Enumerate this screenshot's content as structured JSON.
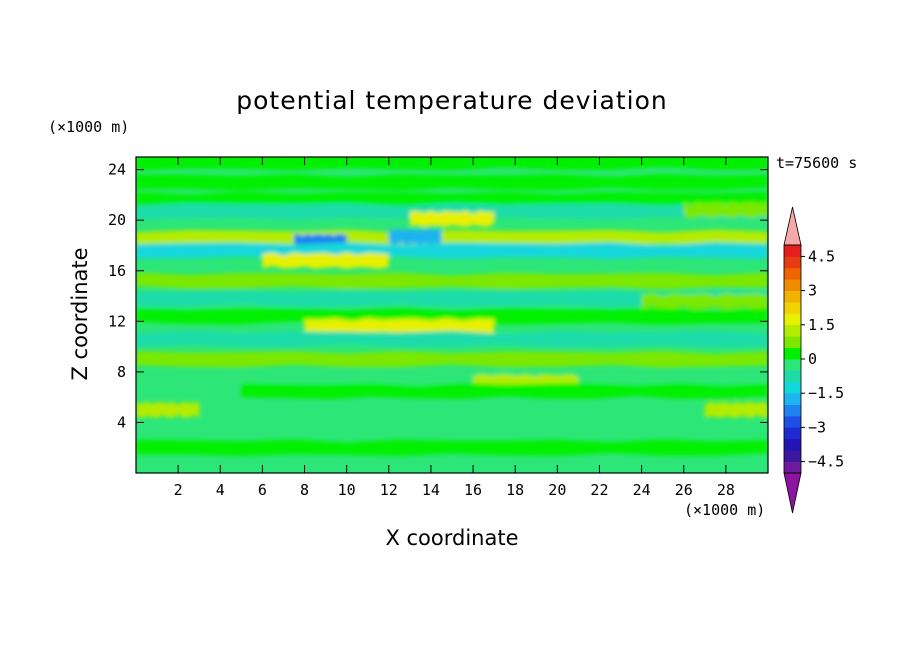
{
  "chart_data": {
    "type": "heatmap",
    "title": "potential temperature deviation",
    "xlabel": "X coordinate",
    "ylabel": "Z coordinate",
    "x_unit": "(×1000 m)",
    "y_unit": "(×1000 m)",
    "time_label": "t=75600 s",
    "xlim": [
      0,
      30
    ],
    "ylim": [
      0,
      25
    ],
    "x_ticks": [
      2,
      4,
      6,
      8,
      10,
      12,
      14,
      16,
      18,
      20,
      22,
      24,
      26,
      28
    ],
    "y_ticks": [
      4,
      8,
      12,
      16,
      20,
      24
    ],
    "grid": false,
    "colorbar": {
      "placement": "right",
      "levels": [
        -5,
        -4.5,
        -4,
        -3.5,
        -3,
        -2.5,
        -2,
        -1.5,
        -1,
        -0.5,
        0,
        0.5,
        1,
        1.5,
        2,
        2.5,
        3,
        3.5,
        4,
        4.5,
        5
      ],
      "tick_labels": [
        "4.5",
        "3",
        "1.5",
        "0",
        "−1.5",
        "−3",
        "−4.5"
      ],
      "tick_values": [
        4.5,
        3,
        1.5,
        0,
        -1.5,
        -3,
        -4.5
      ],
      "colors": [
        "#6e1a9e",
        "#3b189e",
        "#2414b4",
        "#1e2ad2",
        "#1e4ee6",
        "#1e82f0",
        "#1eb4f0",
        "#14d7dc",
        "#1edcaa",
        "#2de678",
        "#00f000",
        "#7ce800",
        "#b4ec00",
        "#e6f000",
        "#f0d200",
        "#f0b400",
        "#f08c00",
        "#f06400",
        "#e63c14",
        "#e61e1e"
      ],
      "over_color": "#f4a8a8",
      "under_color": "#8c14a0"
    },
    "bands": [
      {
        "z": 24.6,
        "x_start": 0,
        "x_end": 30,
        "value": 0.4
      },
      {
        "z": 23.0,
        "x_start": 0,
        "x_end": 30,
        "value": 0.3
      },
      {
        "z": 21.6,
        "x_start": 0,
        "x_end": 30,
        "value": 0.2
      },
      {
        "z": 20.7,
        "x_start": 0,
        "x_end": 30,
        "value": -0.9
      },
      {
        "z": 20.1,
        "x_start": 13,
        "x_end": 17,
        "value": 1.6
      },
      {
        "z": 20.8,
        "x_start": 26,
        "x_end": 30,
        "value": 0.8
      },
      {
        "z": 18.6,
        "x_start": 0,
        "x_end": 30,
        "value": 1.3
      },
      {
        "z": 18.3,
        "x_start": 7.5,
        "x_end": 10,
        "value": -2.3
      },
      {
        "z": 18.7,
        "x_start": 12,
        "x_end": 14.5,
        "value": -1.9
      },
      {
        "z": 17.6,
        "x_start": 0,
        "x_end": 30,
        "value": -1.3
      },
      {
        "z": 16.8,
        "x_start": 6,
        "x_end": 12,
        "value": 1.8
      },
      {
        "z": 15.2,
        "x_start": 0,
        "x_end": 30,
        "value": 0.7
      },
      {
        "z": 13.8,
        "x_start": 0,
        "x_end": 30,
        "value": -0.8
      },
      {
        "z": 13.6,
        "x_start": 24,
        "x_end": 30,
        "value": 0.8
      },
      {
        "z": 12.4,
        "x_start": 0,
        "x_end": 30,
        "value": 0.4
      },
      {
        "z": 11.6,
        "x_start": 8,
        "x_end": 17,
        "value": 1.5
      },
      {
        "z": 10.6,
        "x_start": 0,
        "x_end": 30,
        "value": -0.6
      },
      {
        "z": 9.0,
        "x_start": 0,
        "x_end": 30,
        "value": 0.8
      },
      {
        "z": 7.4,
        "x_start": 0,
        "x_end": 30,
        "value": -0.4
      },
      {
        "z": 7.2,
        "x_start": 16,
        "x_end": 21,
        "value": 1.4
      },
      {
        "z": 6.5,
        "x_start": 5,
        "x_end": 30,
        "value": 0.4
      },
      {
        "z": 5.0,
        "x_start": 0,
        "x_end": 3,
        "value": 1.2
      },
      {
        "z": 5.0,
        "x_start": 27,
        "x_end": 30,
        "value": 1.2
      },
      {
        "z": 2.0,
        "x_start": 0,
        "x_end": 30,
        "value": 0.3
      }
    ]
  }
}
